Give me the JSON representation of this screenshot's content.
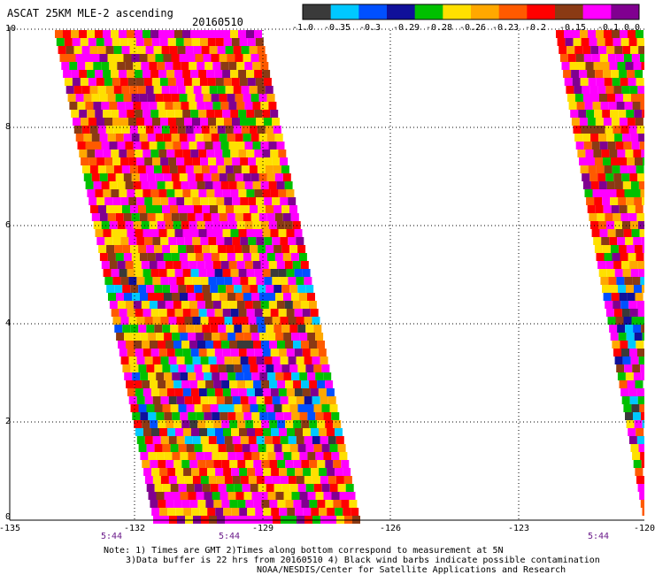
{
  "header": {
    "title": "ASCAT 25KM MLE-2 ascending",
    "date": "20160510"
  },
  "colorbar": {
    "colors": [
      "#3a3a3a",
      "#00c8ff",
      "#0050ff",
      "#10109a",
      "#00c000",
      "#ffe000",
      "#ffa800",
      "#ff5a00",
      "#ff0000",
      "#8a3a14",
      "#ff00ff",
      "#800090"
    ],
    "tick_labels": [
      "-1.0",
      "-0.35",
      "-0.3",
      "-0.29",
      "-0.28",
      "-0.26",
      "-0.23",
      "-0.2",
      "-0.15",
      "-0.1",
      "0.0"
    ]
  },
  "axes": {
    "x_ticks": [
      "-135",
      "-132",
      "-129",
      "-126",
      "-123",
      "-120"
    ],
    "y_ticks": [
      "0",
      "2",
      "4",
      "6",
      "8",
      "10"
    ],
    "x_range": [
      -135,
      -120
    ],
    "y_range": [
      0,
      10
    ],
    "grid": true
  },
  "time_labels": [
    "5:44",
    "5:44",
    "5:44"
  ],
  "notes": [
    "Note: 1) Times are GMT 2)Times along bottom correspond to measurement at 5N",
    "3)Data buffer is 22 hrs from 20160510 4) Black wind barbs indicate possible contamination",
    "NOAA/NESDIS/Center for Satellite Applications and Research"
  ]
}
